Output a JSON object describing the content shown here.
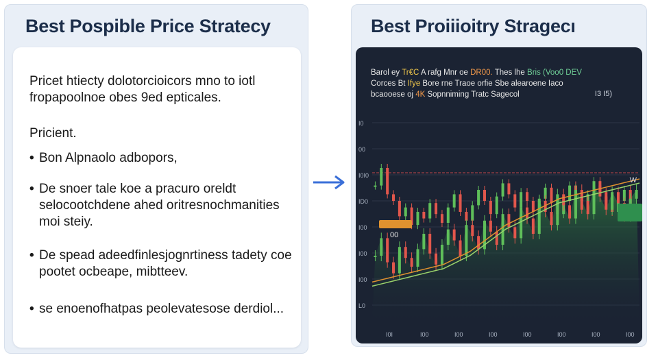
{
  "left_panel": {
    "title": "Best Pospible Price Stratecy",
    "intro": "Pricet htiecty dolotorcioicors mno to iotl fropapoolnoe obes 9ed epticales.",
    "subhead": "Pricient.",
    "bullets": [
      "Bon Alpnaolo adbopors,",
      "De snoer tale koe a pracuro oreldt selocootchdene ahed oritresnochmanities moi steiy.",
      "De spead adeedfinlesjognrtiness tadety coe pootet ocbeape, mibtteev.",
      "se enoenofhatpas peolevatesose derdiol..."
    ]
  },
  "right_panel": {
    "title": "Best Proiiioitry Stragecı",
    "chart_notes": {
      "line1_pre": "Barol ey ",
      "line1_hl1": "Tr€C ",
      "line1_mid": "A rafg  Mnr oe ",
      "line1_hl2": "DR00.",
      "line1_post": " Thes lhe ",
      "line1_hl3": "Bris (Voo0 DEV",
      "line2_pre": "Corces Bt ",
      "line2_hl": "Ifye",
      "line2_post": " Bore rne Traoe orfie Sbe alearoene Iaco",
      "line3": "bcaooese oj ",
      "line3_hl": "4K",
      "line3_post": " Sopnniming Tratc Sagecol"
    },
    "corner_value": "I3 I5)",
    "price_box": "",
    "price_under": "00",
    "green_box": "",
    "side_label": "W",
    "colors": {
      "up": "#5fbf5a",
      "down": "#e2574c",
      "ma_orange": "#e0922f",
      "ma_green": "#9bd36b",
      "support": "#c0444a"
    }
  },
  "chart_data": {
    "type": "line",
    "title": "",
    "xlabel": "",
    "ylabel": "",
    "y_tick_labels": [
      "I0",
      "00",
      "I0I0",
      "ID0",
      "I00",
      "I00",
      "I00",
      "L0"
    ],
    "x_tick_labels": [
      "I0I",
      "I00",
      "I00",
      "I00",
      "I00",
      "I00",
      "I00",
      "I00"
    ],
    "series": [
      {
        "values": [
          62,
          70,
          58,
          55,
          48,
          52,
          44,
          50,
          47,
          54,
          49,
          45,
          52,
          58,
          50,
          46,
          53,
          60,
          55,
          49,
          57,
          63,
          58,
          52,
          59,
          55,
          50,
          56,
          61,
          54,
          49,
          55,
          62,
          57,
          51,
          58,
          64,
          59,
          53,
          50,
          55,
          60,
          52,
          48
        ]
      },
      {
        "values": [
          30,
          38,
          27,
          22,
          34,
          29,
          25,
          33,
          40,
          31,
          26,
          35,
          42,
          37,
          30,
          44,
          39,
          33,
          46,
          41,
          35,
          49,
          43,
          38,
          52,
          47,
          40,
          55,
          50,
          44,
          58,
          53,
          47,
          60,
          55,
          49,
          62,
          57,
          51,
          59,
          54,
          48,
          56,
          60
        ]
      },
      {
        "values": [
          18,
          19,
          20,
          21,
          22,
          23,
          24,
          25,
          26,
          28,
          30,
          32,
          35,
          38,
          41,
          44,
          46,
          48,
          50,
          52,
          54,
          56,
          57,
          58,
          59,
          60,
          61,
          62,
          63,
          64,
          65
        ]
      }
    ],
    "ylim": [
      0,
      100
    ]
  }
}
